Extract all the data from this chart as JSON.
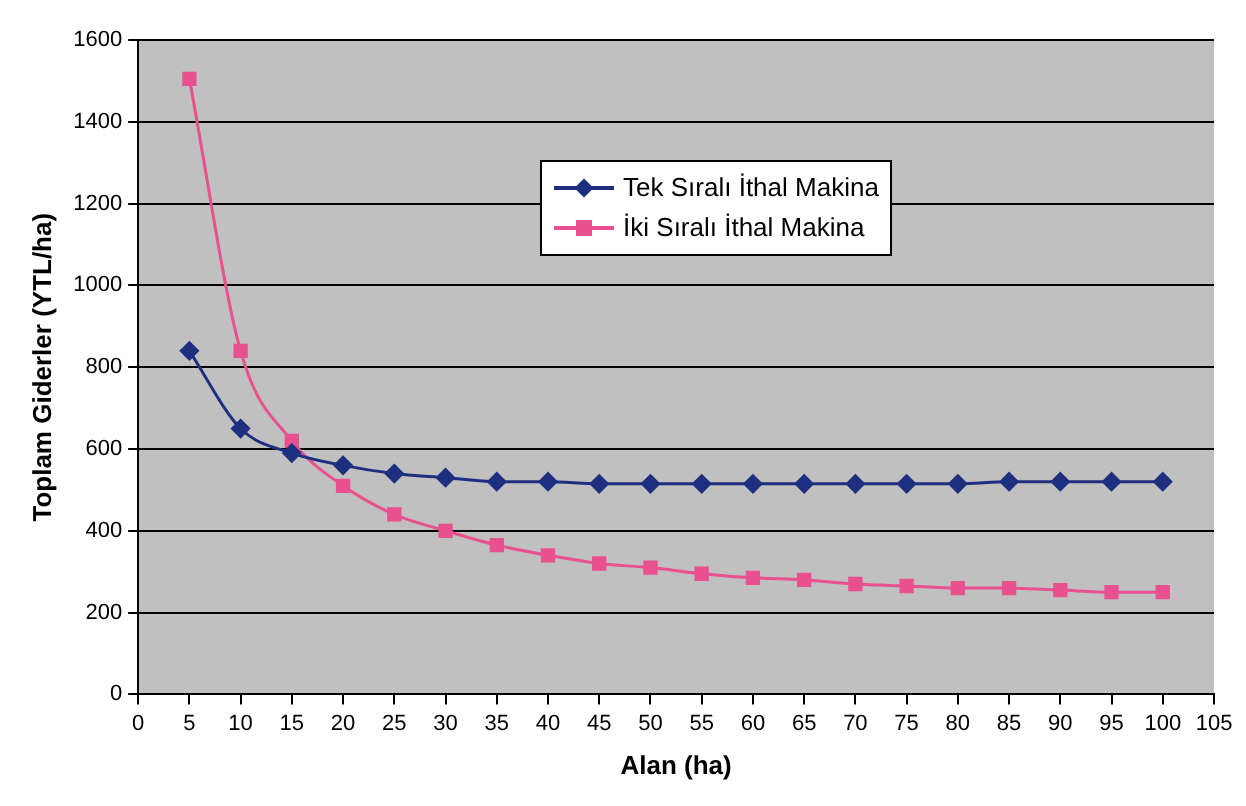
{
  "chart_data": {
    "type": "line",
    "xlabel": "Alan (ha)",
    "ylabel": "Toplam Giderler (YTL/ha)",
    "x": [
      5,
      10,
      15,
      20,
      25,
      30,
      35,
      40,
      45,
      50,
      55,
      60,
      65,
      70,
      75,
      80,
      85,
      90,
      95,
      100
    ],
    "series": [
      {
        "name": "Tek Sıralı İthal Makina",
        "color": "#1f2f80",
        "marker": "diamond",
        "values": [
          840,
          650,
          590,
          560,
          540,
          530,
          520,
          520,
          515,
          515,
          515,
          515,
          515,
          515,
          515,
          515,
          520,
          520,
          520,
          520
        ]
      },
      {
        "name": "İki Sıralı İthal Makina",
        "color": "#e8508f",
        "marker": "square",
        "values": [
          1505,
          840,
          620,
          510,
          440,
          400,
          365,
          340,
          320,
          310,
          295,
          285,
          280,
          270,
          265,
          260,
          260,
          255,
          250,
          250
        ]
      }
    ],
    "xlim": [
      0,
      105
    ],
    "xticks": [
      0,
      5,
      10,
      15,
      20,
      25,
      30,
      35,
      40,
      45,
      50,
      55,
      60,
      65,
      70,
      75,
      80,
      85,
      90,
      95,
      100,
      105
    ],
    "ylim": [
      0,
      1600
    ],
    "yticks": [
      0,
      200,
      400,
      600,
      800,
      1000,
      1200,
      1400,
      1600
    ],
    "grid": "y",
    "legend": "top",
    "line_style": "solid"
  }
}
